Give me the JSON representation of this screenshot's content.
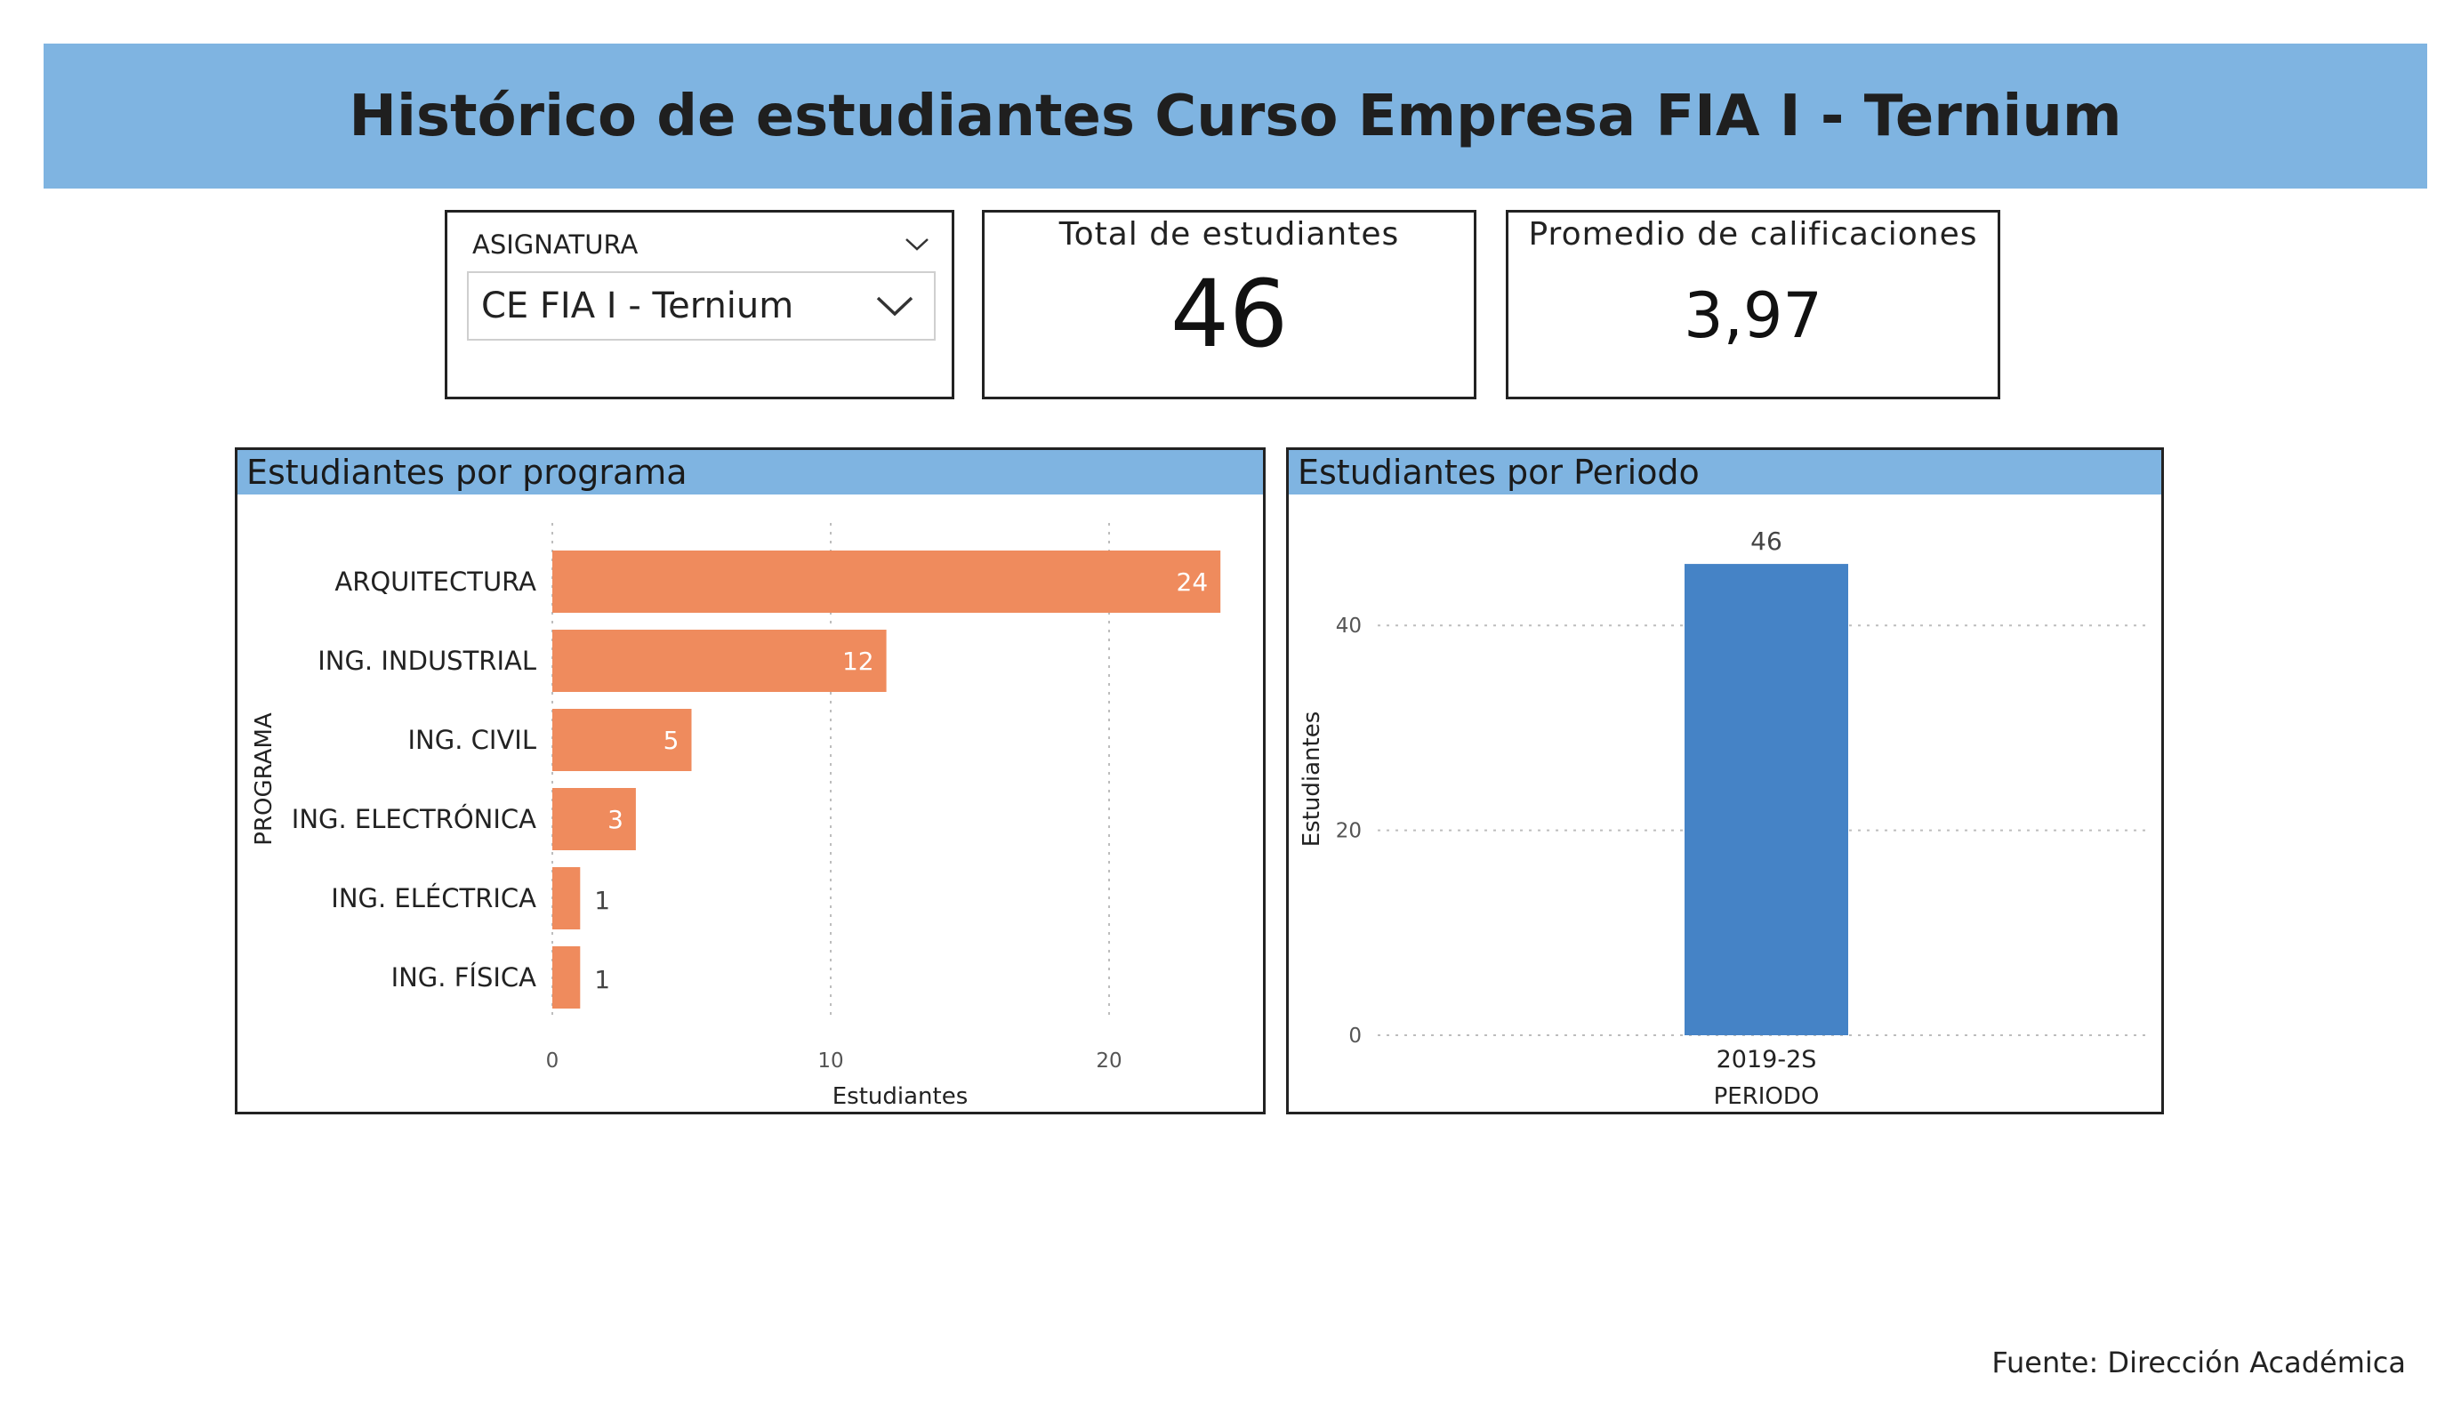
{
  "header": {
    "title": "Histórico de estudiantes Curso Empresa FIA I - Ternium"
  },
  "slicer": {
    "label": "ASIGNATURA",
    "value": "CE FIA I - Ternium",
    "icon": "chevron-down-icon"
  },
  "kpis": {
    "total": {
      "label": "Total de estudiantes",
      "value": "46"
    },
    "avg": {
      "label": "Promedio de calificaciones",
      "value": "3,97"
    }
  },
  "colors": {
    "banner": "#7fb4e1",
    "bar_program": "#ef8b5d",
    "bar_period": "#4583c6"
  },
  "chart_data": [
    {
      "type": "bar",
      "orientation": "horizontal",
      "title": "Estudiantes por programa",
      "xlabel": "Estudiantes",
      "ylabel": "PROGRAMA",
      "categories": [
        "ARQUITECTURA",
        "ING. INDUSTRIAL",
        "ING. CIVIL",
        "ING. ELECTRÓNICA",
        "ING. ELÉCTRICA",
        "ING. FÍSICA"
      ],
      "values": [
        24,
        12,
        5,
        3,
        1,
        1
      ],
      "xlim": [
        0,
        25
      ],
      "xticks": [
        0,
        10,
        20
      ],
      "grid": true
    },
    {
      "type": "bar",
      "orientation": "vertical",
      "title": "Estudiantes por Periodo",
      "xlabel": "PERIODO",
      "ylabel": "Estudiantes",
      "categories": [
        "2019-2S"
      ],
      "values": [
        46
      ],
      "ylim": [
        0,
        46
      ],
      "yticks": [
        0,
        20,
        40
      ],
      "grid": true
    }
  ],
  "footer": {
    "source": "Fuente: Dirección Académica"
  }
}
